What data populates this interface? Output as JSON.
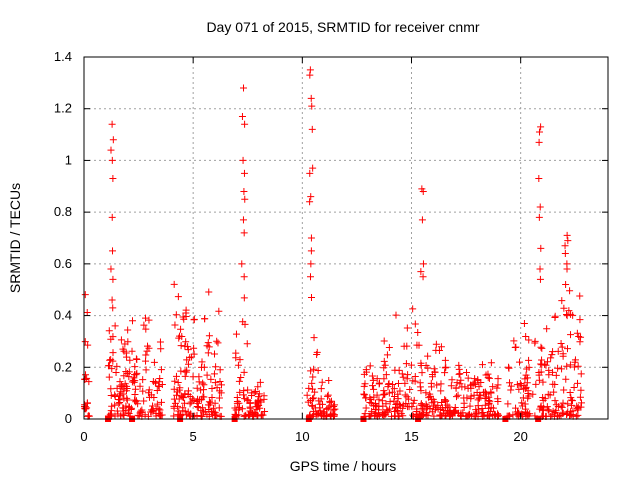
{
  "chart_data": {
    "type": "scatter",
    "title": "Day 071 of 2015, SRMTID for receiver cnmr",
    "xlabel": "GPS time / hours",
    "ylabel": "SRMTID / TECUs",
    "xlim": [
      0,
      24
    ],
    "ylim": [
      0,
      1.4
    ],
    "xticks": [
      0,
      5,
      10,
      15,
      20
    ],
    "xtick_labels": [
      "0",
      "5",
      "10",
      "15",
      "20"
    ],
    "yticks": [
      0,
      0.2,
      0.4,
      0.6,
      0.8,
      1.0,
      1.2,
      1.4
    ],
    "ytick_labels": [
      "0",
      "0.2",
      "0.4",
      "0.6",
      "0.8",
      "1",
      "1.2",
      "1.4"
    ],
    "grid": true,
    "marker": "plus",
    "color": "#ff0000",
    "zero_markers_x": [
      1.1,
      2.2,
      4.4,
      6.9,
      10.3,
      12.8,
      15.3,
      19.3,
      20.8
    ],
    "spikes": [
      {
        "x": 1.3,
        "y": [
          1.14,
          1.08,
          1.04,
          1.0,
          0.93,
          0.78,
          0.65,
          0.58,
          0.54,
          0.46,
          0.43
        ]
      },
      {
        "x": 7.3,
        "y": [
          1.28,
          1.17,
          1.14,
          1.0,
          0.95,
          0.88,
          0.85,
          0.77,
          0.72,
          0.6,
          0.55
        ]
      },
      {
        "x": 10.4,
        "y": [
          1.35,
          1.33,
          1.24,
          1.21,
          1.12,
          0.97,
          0.95,
          0.86,
          0.84,
          0.7,
          0.65,
          0.6,
          0.55,
          0.47
        ]
      },
      {
        "x": 15.5,
        "y": [
          0.89,
          0.88,
          0.77,
          0.6,
          0.57,
          0.55
        ]
      },
      {
        "x": 20.9,
        "y": [
          1.13,
          1.11,
          1.07,
          0.93,
          0.82,
          0.78,
          0.66,
          0.58,
          0.54
        ]
      },
      {
        "x": 22.1,
        "y": [
          0.71,
          0.69,
          0.67,
          0.64,
          0.6,
          0.58,
          0.52
        ]
      }
    ],
    "clusters": [
      {
        "x0": 0.0,
        "x1": 0.25,
        "ymax": 0.48,
        "n": 22
      },
      {
        "x0": 1.1,
        "x1": 2.0,
        "ymax": 0.45,
        "n": 70
      },
      {
        "x0": 2.0,
        "x1": 3.6,
        "ymax": 0.5,
        "n": 90
      },
      {
        "x0": 4.1,
        "x1": 5.0,
        "ymax": 0.57,
        "n": 70
      },
      {
        "x0": 5.0,
        "x1": 6.3,
        "ymax": 0.5,
        "n": 80
      },
      {
        "x0": 6.9,
        "x1": 7.6,
        "ymax": 0.5,
        "n": 40
      },
      {
        "x0": 7.6,
        "x1": 8.3,
        "ymax": 0.18,
        "n": 40
      },
      {
        "x0": 10.2,
        "x1": 10.8,
        "ymax": 0.4,
        "n": 30
      },
      {
        "x0": 10.8,
        "x1": 11.5,
        "ymax": 0.15,
        "n": 40
      },
      {
        "x0": 12.8,
        "x1": 14.2,
        "ymax": 0.32,
        "n": 80
      },
      {
        "x0": 14.2,
        "x1": 15.3,
        "ymax": 0.48,
        "n": 60
      },
      {
        "x0": 15.3,
        "x1": 16.5,
        "ymax": 0.42,
        "n": 70
      },
      {
        "x0": 16.5,
        "x1": 18.0,
        "ymax": 0.3,
        "n": 80
      },
      {
        "x0": 18.0,
        "x1": 19.0,
        "ymax": 0.25,
        "n": 60
      },
      {
        "x0": 19.3,
        "x1": 20.5,
        "ymax": 0.4,
        "n": 60
      },
      {
        "x0": 20.5,
        "x1": 21.5,
        "ymax": 0.45,
        "n": 50
      },
      {
        "x0": 21.5,
        "x1": 22.8,
        "ymax": 0.55,
        "n": 80
      }
    ]
  }
}
